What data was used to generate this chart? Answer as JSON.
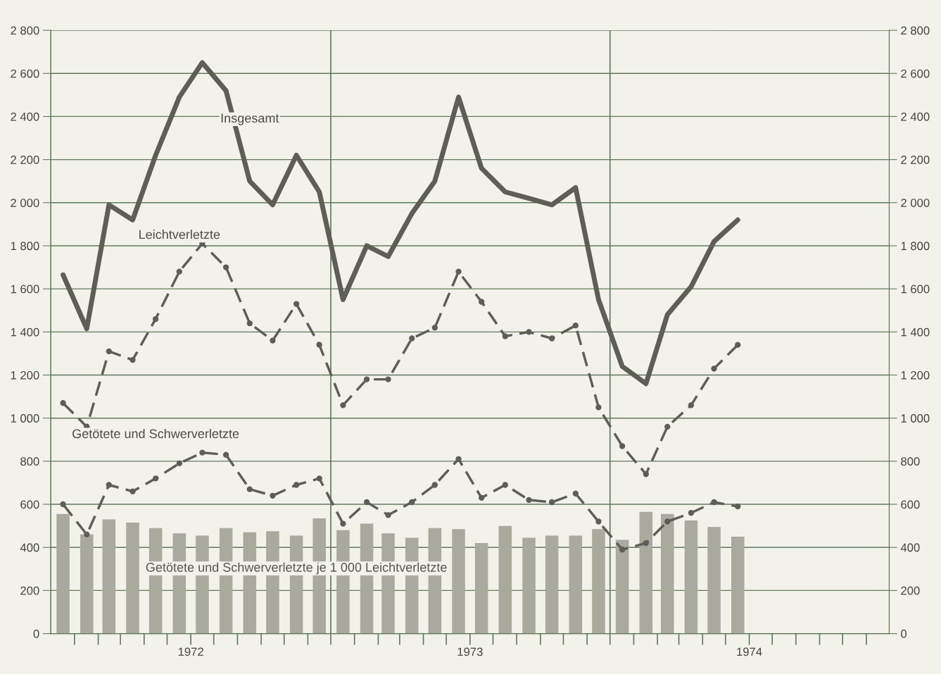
{
  "chart_data": {
    "type": "line",
    "x": [
      "1972-01",
      "1972-02",
      "1972-03",
      "1972-04",
      "1972-05",
      "1972-06",
      "1972-07",
      "1972-08",
      "1972-09",
      "1972-10",
      "1972-11",
      "1972-12",
      "1973-01",
      "1973-02",
      "1973-03",
      "1973-04",
      "1973-05",
      "1973-06",
      "1973-07",
      "1973-08",
      "1973-09",
      "1973-10",
      "1973-11",
      "1973-12",
      "1974-01",
      "1974-02",
      "1974-03",
      "1974-04",
      "1974-05",
      "1974-06"
    ],
    "series": [
      {
        "name": "Getötete und Schwerverletzte je 1 000 Leichtverletzte",
        "type": "bar",
        "color": "#aaa99e",
        "values": [
          555,
          460,
          530,
          515,
          490,
          465,
          455,
          490,
          470,
          475,
          455,
          535,
          480,
          510,
          465,
          445,
          490,
          485,
          420,
          500,
          445,
          455,
          455,
          485,
          435,
          565,
          555,
          525,
          495,
          450
        ]
      },
      {
        "name": "Insgesamt",
        "color": "#5e5e56",
        "line_style": "solid",
        "marker": "none",
        "values": [
          1665,
          1415,
          1990,
          1920,
          2220,
          2490,
          2650,
          2520,
          2100,
          1990,
          2220,
          2050,
          1550,
          1800,
          1750,
          1950,
          2100,
          2490,
          2160,
          2050,
          2020,
          1990,
          2070,
          1550,
          1240,
          1160,
          1480,
          1610,
          1820,
          1920
        ]
      },
      {
        "name": "Leichtverletzte",
        "color": "#5e5e56",
        "line_style": "dashed",
        "marker": "circle",
        "values": [
          1070,
          960,
          1310,
          1270,
          1460,
          1680,
          1810,
          1700,
          1440,
          1360,
          1530,
          1340,
          1060,
          1180,
          1180,
          1370,
          1420,
          1680,
          1540,
          1380,
          1400,
          1370,
          1430,
          1050,
          870,
          740,
          960,
          1060,
          1230,
          1340
        ]
      },
      {
        "name": "Getötete und Schwerverletzte",
        "color": "#5e5e56",
        "line_style": "dashed",
        "marker": "circle",
        "values": [
          600,
          460,
          690,
          660,
          720,
          790,
          840,
          830,
          670,
          640,
          690,
          720,
          510,
          610,
          550,
          610,
          690,
          810,
          630,
          690,
          620,
          610,
          650,
          520,
          390,
          420,
          520,
          560,
          610,
          590
        ]
      }
    ],
    "xlim": [
      "1971-12-16",
      "1974-12-16"
    ],
    "xticks": [
      {
        "value": "1972-01-16",
        "label": null
      },
      {
        "value": "1972-02-16",
        "label": null
      },
      {
        "value": "1972-03-16",
        "label": null
      },
      {
        "value": "1972-04-16",
        "label": null
      },
      {
        "value": "1972-05-16",
        "label": null
      },
      {
        "value": "1972-06-16",
        "label": "1972"
      },
      {
        "value": "1972-07-16",
        "label": null
      },
      {
        "value": "1972-08-16",
        "label": null
      },
      {
        "value": "1972-09-16",
        "label": null
      },
      {
        "value": "1972-10-16",
        "label": null
      },
      {
        "value": "1972-11-16",
        "label": null
      },
      {
        "value": "1972-12-16",
        "label": null
      },
      {
        "value": "1973-01-16",
        "label": null
      },
      {
        "value": "1973-02-16",
        "label": null
      },
      {
        "value": "1973-03-16",
        "label": null
      },
      {
        "value": "1973-04-16",
        "label": null
      },
      {
        "value": "1973-05-16",
        "label": null
      },
      {
        "value": "1973-06-16",
        "label": "1973"
      },
      {
        "value": "1973-07-16",
        "label": null
      },
      {
        "value": "1973-08-16",
        "label": null
      },
      {
        "value": "1973-09-16",
        "label": null
      },
      {
        "value": "1973-10-16",
        "label": null
      },
      {
        "value": "1973-11-16",
        "label": null
      },
      {
        "value": "1973-12-16",
        "label": null
      },
      {
        "value": "1974-01-16",
        "label": null
      },
      {
        "value": "1974-02-16",
        "label": null
      },
      {
        "value": "1974-03-16",
        "label": null
      },
      {
        "value": "1974-04-16",
        "label": null
      },
      {
        "value": "1974-05-16",
        "label": null
      },
      {
        "value": "1974-06-16",
        "label": "1974"
      },
      {
        "value": "1974-07-16",
        "label": null
      },
      {
        "value": "1974-08-16",
        "label": null
      },
      {
        "value": "1974-09-16",
        "label": null
      },
      {
        "value": "1974-10-16",
        "label": null
      },
      {
        "value": "1974-11-16",
        "label": null
      }
    ],
    "ylim": [
      0,
      2800
    ],
    "yticks": [
      0,
      200,
      400,
      600,
      800,
      {
        "value": 1000,
        "label": "1 000"
      },
      {
        "value": 1200,
        "label": "1 200"
      },
      {
        "value": 1400,
        "label": "1 400"
      },
      {
        "value": 1600,
        "label": "1 600"
      },
      {
        "value": 1800,
        "label": "1 800"
      },
      {
        "value": 2000,
        "label": "2 000"
      },
      {
        "value": 2200,
        "label": "2 200"
      },
      {
        "value": 2400,
        "label": "2 400"
      },
      {
        "value": 2600,
        "label": "2 600"
      },
      {
        "value": 2800,
        "label": "2 800"
      }
    ],
    "y2lim": [
      0,
      2800
    ],
    "y2ticks": [
      0,
      200,
      400,
      600,
      800,
      {
        "value": 1000,
        "label": "1 000"
      },
      {
        "value": 1200,
        "label": "1 200"
      },
      {
        "value": 1400,
        "label": "1 400"
      },
      {
        "value": 1600,
        "label": "1 600"
      },
      {
        "value": 1800,
        "label": "1 800"
      },
      {
        "value": 2000,
        "label": "2 000"
      },
      {
        "value": 2200,
        "label": "2 200"
      },
      {
        "value": 2400,
        "label": "2 400"
      },
      {
        "value": 2600,
        "label": "2 600"
      },
      {
        "value": 2800,
        "label": "2 800"
      }
    ],
    "ref_lines": [
      {
        "axis": "x",
        "value": "1972-12-16",
        "color": "#5f7a5a"
      },
      {
        "axis": "x",
        "value": "1973-12-16",
        "color": "#5f7a5a"
      }
    ],
    "grid": "y",
    "legend": false
  }
}
